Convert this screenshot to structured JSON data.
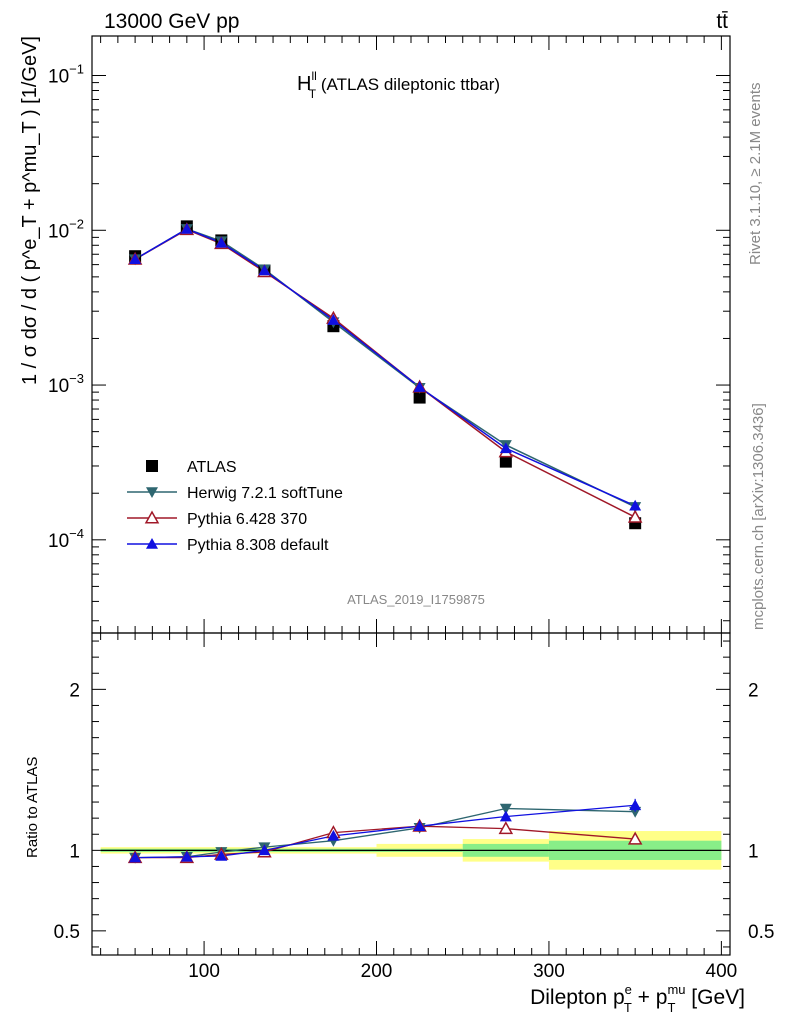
{
  "header": {
    "left": "13000 GeV pp",
    "right": "tt̄"
  },
  "side_text": {
    "rivet": "Rivet 3.1.10, ≥ 2.1M events",
    "mcplots": "mcplots.cern.ch [arXiv:1306.3436]"
  },
  "analysis_id": "ATLAS_2019_I1759875",
  "chart_data": [
    {
      "type": "line",
      "title_main": "H",
      "title_sup": "ll",
      "title_sub": "T",
      "title_rest": " (ATLAS dileptonic ttbar)",
      "ylabel": "1 / σ  dσ / d ( p^e_T + p^mu_T ) [1/GeV]",
      "yscale": "log",
      "ylim": [
        2.5e-05,
        0.18
      ],
      "xlim": [
        35,
        405
      ],
      "yticks": [
        {
          "value": 0.1,
          "base": "10",
          "exp": "−1"
        },
        {
          "value": 0.01,
          "base": "10",
          "exp": "−2"
        },
        {
          "value": 0.001,
          "base": "10",
          "exp": "−3"
        },
        {
          "value": 0.0001,
          "base": "10",
          "exp": "−4"
        }
      ],
      "legend_position": "bottom-left",
      "series": [
        {
          "name": "ATLAS",
          "marker": "square",
          "color": "#000000",
          "line": false,
          "x": [
            60,
            90,
            110,
            135,
            175,
            225,
            275,
            350
          ],
          "y": [
            0.0068,
            0.0106,
            0.0086,
            0.0055,
            0.0024,
            0.00083,
            0.00032,
            0.000128
          ]
        },
        {
          "name": "Herwig 7.2.1 softTune",
          "marker": "triangle-down",
          "color": "#2e6670",
          "line": true,
          "x": [
            60,
            90,
            110,
            135,
            175,
            225,
            275,
            350
          ],
          "y": [
            0.0065,
            0.0102,
            0.0085,
            0.0056,
            0.00255,
            0.00096,
            0.00041,
            0.000163
          ]
        },
        {
          "name": "Pythia 6.428 370",
          "marker": "triangle-up-open",
          "color": "#a01828",
          "line": true,
          "x": [
            60,
            90,
            110,
            135,
            175,
            225,
            275,
            350
          ],
          "y": [
            0.0065,
            0.0101,
            0.0082,
            0.0054,
            0.0027,
            0.00097,
            0.00037,
            0.00014
          ]
        },
        {
          "name": "Pythia 8.308 default",
          "marker": "triangle-up",
          "color": "#1010e0",
          "line": true,
          "x": [
            60,
            90,
            110,
            135,
            175,
            225,
            275,
            350
          ],
          "y": [
            0.0065,
            0.0102,
            0.0083,
            0.0055,
            0.00263,
            0.00097,
            0.00039,
            0.000166
          ]
        }
      ]
    },
    {
      "type": "line",
      "ylabel": "Ratio to ATLAS",
      "xlabel_main": "Dilepton p",
      "xlabel_sup1": "e",
      "xlabel_sub1": "T",
      "xlabel_mid": " + p",
      "xlabel_sup2": "mu",
      "xlabel_sub2": "T",
      "xlabel_unit": " [GeV]",
      "ylim": [
        0.35,
        2.35
      ],
      "xlim": [
        35,
        405
      ],
      "xticks": [
        100,
        200,
        300,
        400
      ],
      "yticks": [
        0.5,
        1,
        2
      ],
      "bands": [
        {
          "x0": 40,
          "x1": 200,
          "green": [
            0.99,
            1.01
          ],
          "yellow": [
            0.98,
            1.02
          ]
        },
        {
          "x0": 200,
          "x1": 250,
          "green": [
            0.99,
            1.01
          ],
          "yellow": [
            0.96,
            1.04
          ]
        },
        {
          "x0": 250,
          "x1": 300,
          "green": [
            0.96,
            1.04
          ],
          "yellow": [
            0.93,
            1.07
          ]
        },
        {
          "x0": 300,
          "x1": 400,
          "green": [
            0.94,
            1.06
          ],
          "yellow": [
            0.88,
            1.12
          ]
        }
      ],
      "series": [
        {
          "name": "Herwig 7.2.1 softTune",
          "marker": "triangle-down",
          "color": "#2e6670",
          "x": [
            60,
            90,
            110,
            135,
            175,
            225,
            275,
            350
          ],
          "y": [
            0.955,
            0.96,
            0.99,
            1.02,
            1.06,
            1.14,
            1.26,
            1.24
          ]
        },
        {
          "name": "Pythia 6.428 370",
          "marker": "triangle-up-open",
          "color": "#a01828",
          "x": [
            60,
            90,
            110,
            135,
            175,
            225,
            275,
            350
          ],
          "y": [
            0.955,
            0.955,
            0.975,
            0.99,
            1.11,
            1.15,
            1.135,
            1.07
          ]
        },
        {
          "name": "Pythia 8.308 default",
          "marker": "triangle-up",
          "color": "#1010e0",
          "x": [
            60,
            90,
            110,
            135,
            175,
            225,
            275,
            350
          ],
          "y": [
            0.955,
            0.96,
            0.965,
            1.0,
            1.09,
            1.15,
            1.21,
            1.28
          ],
          "err": [
            0,
            0,
            0,
            0,
            0,
            0,
            0,
            0.04
          ]
        }
      ]
    }
  ]
}
